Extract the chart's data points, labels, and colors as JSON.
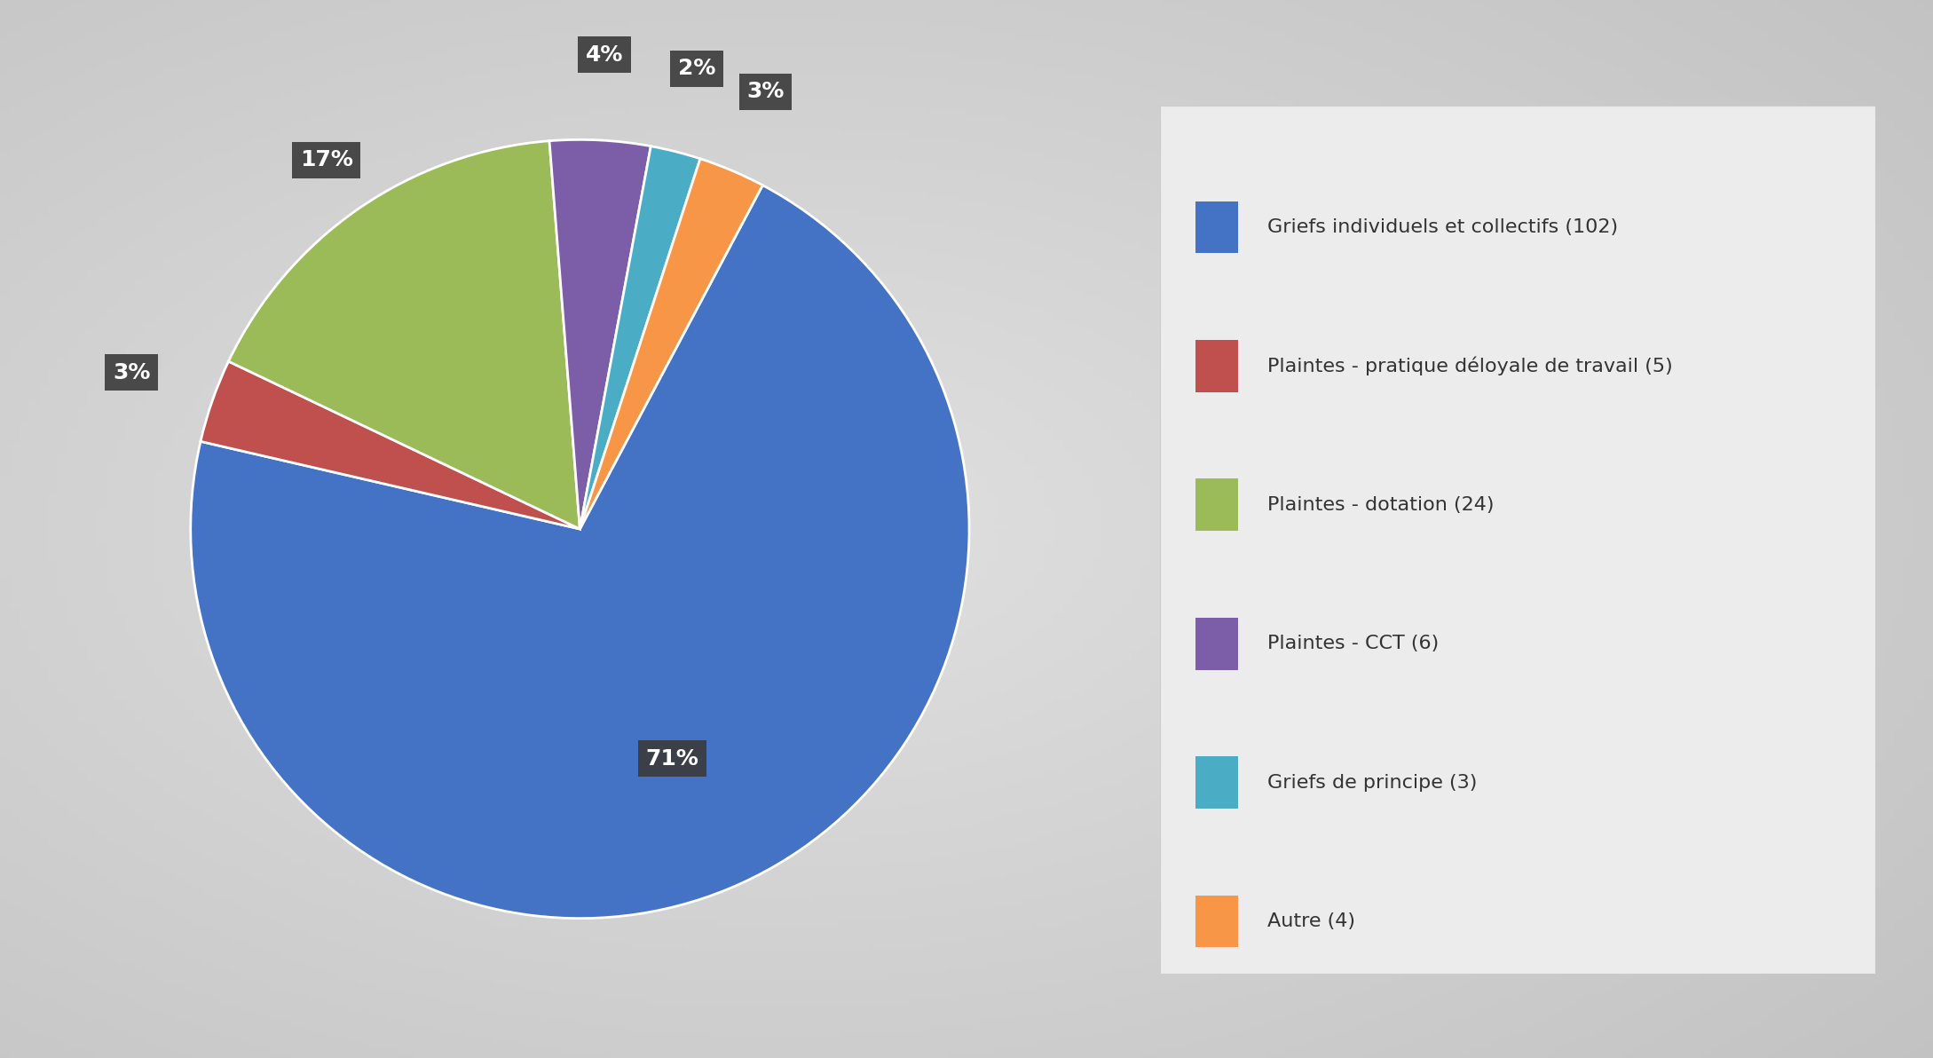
{
  "slices": [
    {
      "label": "Griefs individuels et collectifs (102)",
      "value": 102,
      "pct": 71,
      "color": "#4472C4"
    },
    {
      "label": "Plaintes - pratique déloyale de travail (5)",
      "value": 5,
      "pct": 3,
      "color": "#C0504D"
    },
    {
      "label": "Plaintes - dotation (24)",
      "value": 24,
      "pct": 17,
      "color": "#9BBB59"
    },
    {
      "label": "Plaintes - CCT (6)",
      "value": 6,
      "pct": 4,
      "color": "#7B5EA7"
    },
    {
      "label": "Griefs de principe (3)",
      "value": 3,
      "pct": 2,
      "color": "#4BACC6"
    },
    {
      "label": "Autre (4)",
      "value": 4,
      "pct": 3,
      "color": "#F79646"
    }
  ],
  "label_box_bg": "#3A3A3A",
  "label_text": "#FFFFFF",
  "background_color": "#D0D0D0",
  "legend_bg": "#EFEFEF",
  "startangle": 90,
  "label_fontsize": 18,
  "legend_fontsize": 16,
  "legend_square_size": 0.022
}
